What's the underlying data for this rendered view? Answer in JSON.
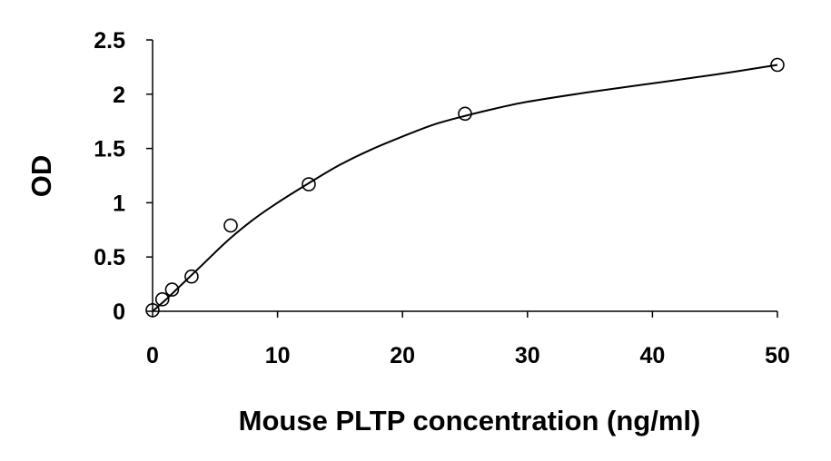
{
  "chart_data": {
    "type": "scatter",
    "title": "",
    "xlabel": "Mouse PLTP concentration (ng/ml)",
    "ylabel": "OD",
    "xlim": [
      0,
      50
    ],
    "ylim": [
      0,
      2.5
    ],
    "x_ticks": [
      "0",
      "10",
      "20",
      "30",
      "40",
      "50"
    ],
    "y_ticks": [
      "0",
      "0.5",
      "1",
      "1.5",
      "2",
      "2.5"
    ],
    "grid": false,
    "legend": "none",
    "series": [
      {
        "marker": "open-circle",
        "trendline": "smooth",
        "x": [
          0,
          0.78,
          1.56,
          3.12,
          6.25,
          12.5,
          25,
          50
        ],
        "y": [
          0.01,
          0.11,
          0.2,
          0.32,
          0.79,
          1.17,
          1.82,
          2.27
        ]
      }
    ],
    "curve": {
      "x": [
        0,
        1,
        2,
        4,
        6,
        8,
        10,
        12.5,
        15,
        17.5,
        20,
        22.5,
        25,
        27.5,
        30,
        35,
        40,
        45,
        50
      ],
      "y": [
        0.0,
        0.1,
        0.21,
        0.43,
        0.65,
        0.84,
        1.0,
        1.18,
        1.35,
        1.49,
        1.61,
        1.72,
        1.8,
        1.87,
        1.93,
        2.02,
        2.1,
        2.18,
        2.27
      ]
    }
  }
}
